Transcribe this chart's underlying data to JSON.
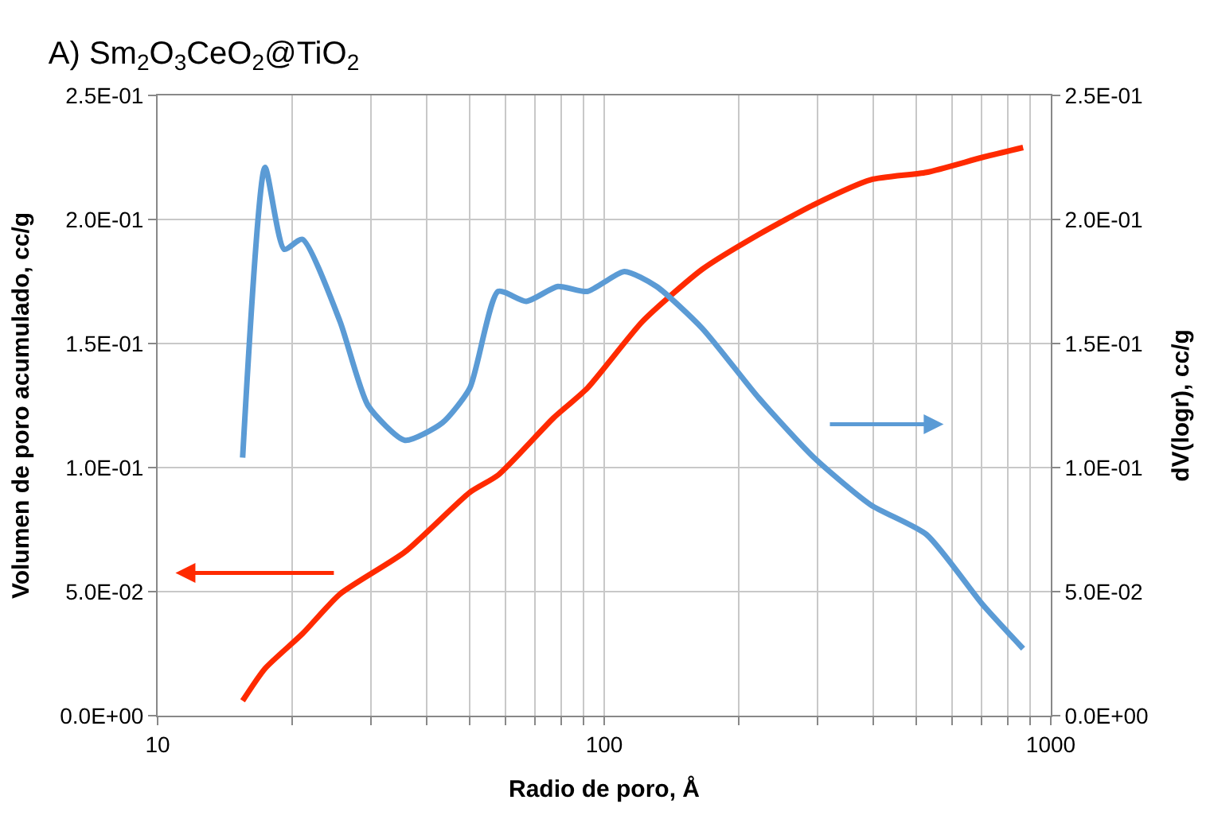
{
  "chart_data": {
    "type": "line",
    "title": "A) Sm$_{2}$O$_{3}$CeO$_{2}$@TiO$_{2}$",
    "xlabel": "Radio de poro, Å",
    "ylabel": "Volumen de poro acumulado, cc/g",
    "y2label": "dV(logr), cc/g",
    "log": "x",
    "grid": true,
    "legend": false,
    "xlim": [
      10,
      1000
    ],
    "xticks": [
      10,
      {
        "value": 20,
        "label": null
      },
      {
        "value": 30,
        "label": null
      },
      {
        "value": 40,
        "label": null
      },
      {
        "value": 50,
        "label": null
      },
      {
        "value": 60,
        "label": null
      },
      {
        "value": 70,
        "label": null
      },
      {
        "value": 80,
        "label": null
      },
      {
        "value": 90,
        "label": null
      },
      100,
      {
        "value": 200,
        "label": null
      },
      {
        "value": 300,
        "label": null
      },
      {
        "value": 400,
        "label": null
      },
      {
        "value": 500,
        "label": null
      },
      {
        "value": 600,
        "label": null
      },
      {
        "value": 700,
        "label": null
      },
      {
        "value": 800,
        "label": null
      },
      {
        "value": 900,
        "label": null
      },
      1000
    ],
    "ylim": [
      0,
      0.25
    ],
    "yticks": [
      {
        "value": 0,
        "label": "0.0E+00"
      },
      {
        "value": 0.05,
        "label": "5.0E-02"
      },
      {
        "value": 0.1,
        "label": "1.0E-01"
      },
      {
        "value": 0.15,
        "label": "1.5E-01"
      },
      {
        "value": 0.2,
        "label": "2.0E-01"
      },
      {
        "value": 0.25,
        "label": "2.5E-01"
      }
    ],
    "y2lim": [
      0,
      0.25
    ],
    "y2ticks": [
      {
        "value": 0,
        "label": "0.0E+00"
      },
      {
        "value": 0.05,
        "label": "5.0E-02"
      },
      {
        "value": 0.1,
        "label": "1.0E-01"
      },
      {
        "value": 0.15,
        "label": "1.5E-01"
      },
      {
        "value": 0.2,
        "label": "2.0E-01"
      },
      {
        "value": 0.25,
        "label": "2.5E-01"
      }
    ],
    "series": [
      {
        "color": "#ff2a00",
        "x": [
          15.5,
          17.4,
          21.1,
          25.6,
          35.8,
          50,
          57.9,
          77,
          91.7,
          122,
          166,
          222,
          295,
          395,
          527,
          702,
          867
        ],
        "values": [
          0.006,
          0.019,
          0.033,
          0.049,
          0.066,
          0.09,
          0.097,
          0.12,
          0.132,
          0.159,
          0.18,
          0.194,
          0.206,
          0.216,
          0.219,
          0.225,
          0.229
        ]
      },
      {
        "color": "#5b9bd5",
        "axis": "y2",
        "x": [
          15.5,
          17.4,
          19.2,
          21.1,
          25.6,
          29.6,
          35.8,
          43.4,
          50,
          57.9,
          66.9,
          78.7,
          91.7,
          111,
          131,
          166,
          222,
          295,
          395,
          527,
          702,
          867
        ],
        "values": [
          0.104,
          0.221,
          0.188,
          0.192,
          0.159,
          0.125,
          0.111,
          0.118,
          0.132,
          0.171,
          0.167,
          0.173,
          0.171,
          0.179,
          0.173,
          0.156,
          0.128,
          0.104,
          0.085,
          0.073,
          0.045,
          0.027
        ]
      }
    ]
  }
}
